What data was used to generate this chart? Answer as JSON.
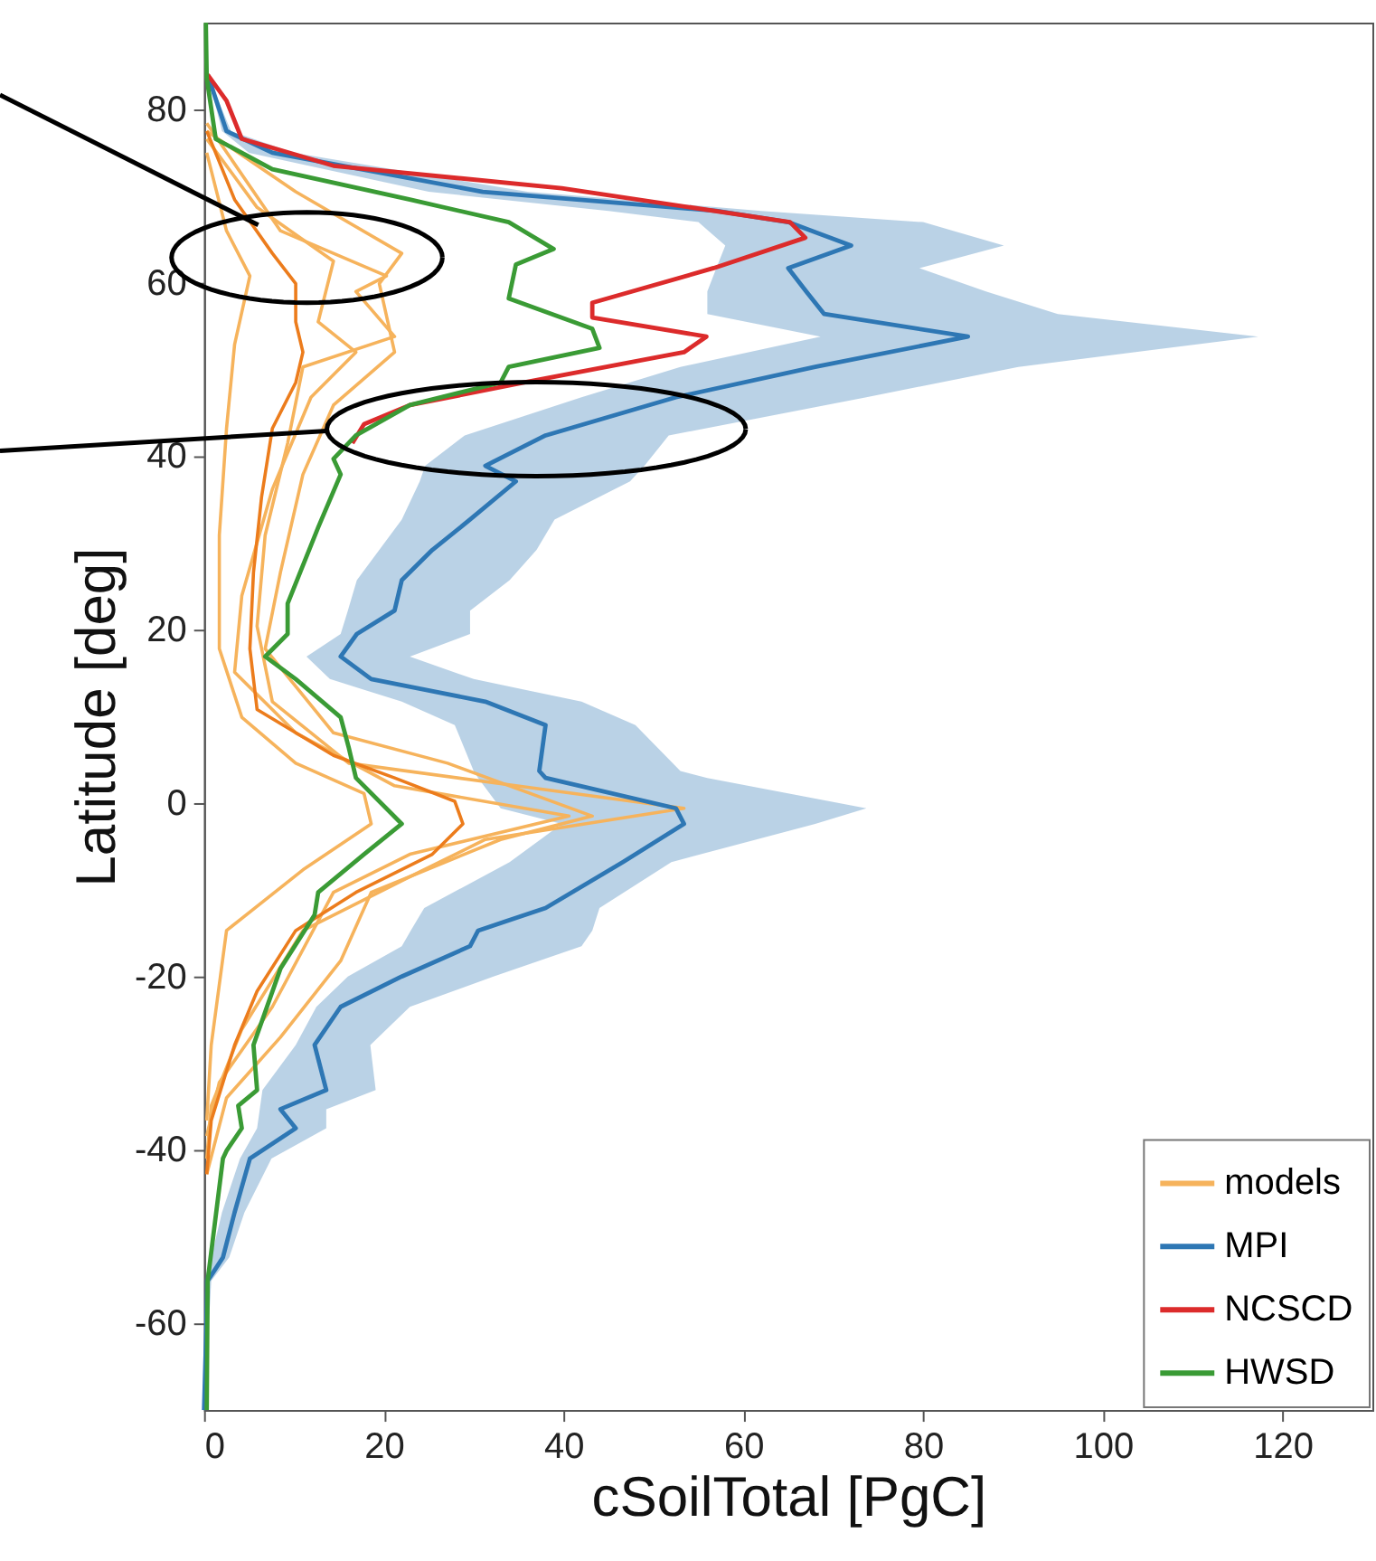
{
  "chart_data": {
    "type": "line",
    "orientation": "horizontal",
    "xlabel": "cSoilTotal [PgC]",
    "ylabel": "Latitude [deg]",
    "xlim": [
      0,
      130
    ],
    "xticks": [
      0,
      20,
      40,
      60,
      80,
      100,
      120
    ],
    "ylim": [
      -70,
      90
    ],
    "yticks": [
      -60,
      -40,
      -20,
      0,
      20,
      40,
      60,
      80
    ],
    "legend": "bottom right",
    "series": [
      {
        "name": "models",
        "color": "#f6b35c",
        "x": [
          77.5,
          70.5,
          63.4,
          59.9,
          52,
          45.9,
          37.9,
          26.6,
          17.8,
          8.1,
          4.6,
          -1.5,
          -4.2,
          -10.3,
          -18.2,
          -27,
          -34,
          -42.8
        ],
        "values": [
          0.3,
          10.2,
          22,
          19.5,
          21.2,
          14.4,
          11,
          8.5,
          6.8,
          14.4,
          27.1,
          43.2,
          33,
          18.6,
          15.2,
          8.5,
          2.5,
          0.3
        ]
      },
      {
        "color": "#f6b35c",
        "x": [
          75,
          66,
          60.8,
          52.9,
          43.2,
          30.9,
          17.8,
          9.9,
          4.6,
          1.1,
          -2.4,
          -7.7,
          -14.7,
          -27.9,
          -36.6
        ],
        "values": [
          0.3,
          2.5,
          5.1,
          3.4,
          2.5,
          1.7,
          1.7,
          4.2,
          10.2,
          17.8,
          18.6,
          11,
          2.5,
          0.8,
          0.3
        ]
      },
      {
        "color": "#f6b35c",
        "x": [
          76.6,
          68.7,
          62.5,
          55.5,
          52,
          46.8,
          36.2,
          23.9,
          15.1,
          8.1,
          2,
          -1.5,
          -5.9,
          -10.3,
          -23.5,
          -32.2,
          -38.4
        ],
        "values": [
          0.3,
          5.9,
          14.4,
          12.7,
          16.9,
          11.9,
          7.6,
          4.2,
          3.4,
          10.2,
          21.2,
          40.6,
          22.9,
          14.4,
          7.6,
          1.7,
          0.3
        ]
      },
      {
        "color": "#f6b35c",
        "x": [
          78.4,
          66,
          60.8,
          59,
          53.8,
          50.3,
          41.5,
          30.9,
          20.4,
          11.7,
          4.6,
          2,
          -0.6,
          -4.2,
          -8.5,
          -14.7,
          -26.1,
          -34.9,
          -41
        ],
        "values": [
          0.3,
          8.5,
          20.3,
          16.9,
          21.2,
          11,
          9.3,
          6.8,
          5.9,
          7.6,
          16.1,
          34.7,
          53.4,
          31.3,
          22.9,
          11,
          4.2,
          0.8,
          0.3
        ]
      },
      {
        "color": "#ec7c1c",
        "x": [
          77.5,
          69.6,
          63.4,
          59.9,
          55.5,
          52,
          48.5,
          43.2,
          35.3,
          26.6,
          17.8,
          10.8,
          5.5,
          2.9,
          0.2,
          -2.4,
          -5.9,
          -10.3,
          -14.7,
          -21.7,
          -27.9,
          -36.6,
          -42.8
        ],
        "values": [
          0.3,
          3.4,
          7.6,
          10.2,
          10.2,
          11,
          10.2,
          7.6,
          6.4,
          5.5,
          5.1,
          5.9,
          14.4,
          21.2,
          27.9,
          28.8,
          25.4,
          16.9,
          10.2,
          5.9,
          3.4,
          0.8,
          0.3
        ]
      },
      {
        "name": "MPI",
        "color": "#2e77b4",
        "x": [
          84,
          77.5,
          75,
          70.5,
          68.3,
          67,
          64.3,
          61.7,
          59,
          56.4,
          53.8,
          50.3,
          46.8,
          42.4,
          38.9,
          37.1,
          32.7,
          29.2,
          25.7,
          22.2,
          19.5,
          16.9,
          14.3,
          11.7,
          9,
          3.7,
          2.9,
          -0.6,
          -2.4,
          -6.8,
          -12.1,
          -14.7,
          -16.5,
          -20,
          -23.5,
          -27.9,
          -33.1,
          -35.3,
          -37.5,
          -41,
          -47.2,
          -52.4,
          -55.1,
          -70
        ],
        "values": [
          0.4,
          2.5,
          7.6,
          31,
          57,
          65,
          72,
          65,
          67,
          69,
          85,
          68,
          52.5,
          38,
          31.3,
          34.7,
          29.6,
          25.4,
          22,
          21.2,
          17,
          15.2,
          18.6,
          31.3,
          38,
          37.3,
          38,
          52.5,
          53.4,
          46.6,
          38,
          30.5,
          29.6,
          22,
          15.2,
          12.3,
          13.6,
          8.5,
          10.2,
          5.1,
          3.4,
          2.1,
          0.4,
          0
        ],
        "lower": [
          0.4,
          2,
          5,
          25,
          45,
          55,
          58,
          57,
          56,
          56,
          68.6,
          53,
          42,
          29,
          24.6,
          24,
          22,
          19.5,
          17,
          16,
          15.2,
          11.4,
          14,
          22,
          27.9,
          30,
          30.5,
          33,
          39.8,
          34,
          24.5,
          23,
          22,
          16,
          12.5,
          10.2,
          6.5,
          6.2,
          5.9,
          4,
          2,
          0.8,
          0,
          0
        ],
        "upper": [
          0.4,
          3,
          10,
          36,
          62,
          80,
          89,
          79.6,
          87,
          95,
          117.3,
          90.6,
          73.7,
          51.7,
          49,
          47.4,
          39,
          37,
          34,
          29.6,
          29.6,
          22.9,
          30,
          42,
          48,
          53,
          56,
          73.7,
          68,
          52,
          44,
          43.2,
          42,
          32.2,
          22.9,
          18.5,
          19.1,
          13.6,
          13.6,
          7.5,
          4.5,
          2.8,
          0.8,
          0
        ]
      },
      {
        "name": "NCSCD",
        "color": "#dc2b2b",
        "x": [
          84,
          81,
          76.6,
          73.5,
          70.9,
          67,
          65.2,
          61.7,
          57.7,
          56,
          53.8,
          52,
          48.5,
          45.9,
          43.7,
          41.5
        ],
        "values": [
          0.4,
          2.5,
          4.2,
          14.4,
          39.8,
          65.2,
          66.9,
          56.7,
          43.2,
          43.2,
          55.9,
          53.4,
          35.6,
          22.9,
          17.8,
          16.5
        ]
      },
      {
        "name": "HWSD",
        "color": "#3a9b35",
        "x": [
          90,
          83.6,
          76.6,
          73.1,
          69.6,
          67,
          63.9,
          62.1,
          58.2,
          54.7,
          52.5,
          50.3,
          48.5,
          45.9,
          42.4,
          39.7,
          37.9,
          31.8,
          23,
          19.5,
          16.9,
          14.3,
          9.9,
          6.4,
          2.9,
          -2.4,
          -5.9,
          -10.3,
          -12.9,
          -19.1,
          -27.9,
          -33.1,
          -34.9,
          -37.5,
          -40.1,
          -41,
          -55.1,
          -70
        ],
        "values": [
          0.2,
          0.3,
          1.3,
          7.6,
          22.9,
          33.9,
          38.9,
          34.7,
          33.9,
          43.2,
          44,
          33.9,
          33,
          22.9,
          16.9,
          14.4,
          15.2,
          12.7,
          9.3,
          9.3,
          6.8,
          10.2,
          15.2,
          16.1,
          16.9,
          22,
          17.8,
          12.7,
          12.3,
          8.5,
          5.5,
          5.9,
          3.8,
          4.2,
          2.5,
          2.1,
          0.4,
          0.3
        ]
      }
    ]
  }
}
